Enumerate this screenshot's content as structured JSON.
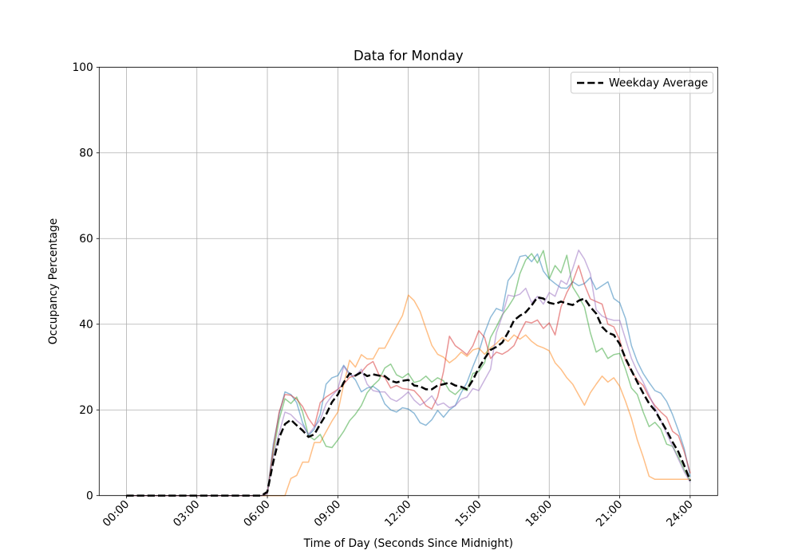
{
  "chart_data": {
    "type": "line",
    "title": "Data for Monday",
    "xlabel": "Time of Day (Seconds Since Midnight)",
    "ylabel": "Occupancy Percentage",
    "background": "#ffffff",
    "grid": true,
    "grid_color": "#b0b0b0",
    "x_tick_hours": [
      0,
      3,
      6,
      9,
      12,
      15,
      18,
      21,
      24
    ],
    "x_tick_labels": [
      "00:00",
      "03:00",
      "06:00",
      "09:00",
      "12:00",
      "15:00",
      "18:00",
      "21:00",
      "24:00"
    ],
    "y_ticks": [
      0,
      20,
      40,
      60,
      80,
      100
    ],
    "xlim_hours": [
      -1.16,
      25.17
    ],
    "ylim": [
      0,
      100
    ],
    "x_start_hours": 0,
    "x_step_hours": 0.25,
    "legend": {
      "position": "upper right",
      "entries": [
        "Weekday Average"
      ]
    },
    "series": [
      {
        "id": "day-series-1",
        "color": "#1f77b4",
        "opacity": 0.5,
        "line_width": 1.5,
        "values": [
          0,
          0,
          0,
          0,
          0,
          0,
          0,
          0,
          0,
          0,
          0,
          0,
          0,
          0,
          0,
          0,
          0,
          0,
          0,
          0,
          0,
          0,
          0,
          0,
          0.5,
          12,
          19,
          24.2,
          23.6,
          21.7,
          17,
          14,
          15.5,
          19,
          26,
          27.5,
          28,
          30.4,
          28.5,
          27,
          24.2,
          25.1,
          25.5,
          24.5,
          21.4,
          20,
          19.5,
          20.5,
          20.2,
          19.2,
          17,
          16.4,
          17.7,
          19.9,
          18.3,
          20,
          21,
          24,
          26.4,
          30.1,
          33.5,
          38,
          41.6,
          43.7,
          43.1,
          50.2,
          52,
          55.8,
          56.1,
          54.6,
          56.4,
          52.4,
          50.6,
          49.5,
          48.5,
          48.4,
          49.9,
          49,
          49.5,
          50.9,
          48.1,
          49,
          49.9,
          46,
          45,
          41.3,
          35,
          31.3,
          28.5,
          26.4,
          24.5,
          23.9,
          22,
          18.9,
          15.2,
          10.9,
          4.5
        ]
      },
      {
        "id": "day-series-2",
        "color": "#ff7f0e",
        "opacity": 0.5,
        "line_width": 1.5,
        "values": [
          0,
          0,
          0,
          0,
          0,
          0,
          0,
          0,
          0,
          0,
          0,
          0,
          0,
          0,
          0,
          0,
          0,
          0,
          0,
          0,
          0,
          0,
          0,
          0,
          0,
          0,
          0,
          0,
          4,
          4.7,
          7.8,
          7.8,
          12.4,
          12.4,
          14.9,
          17.4,
          19.5,
          26,
          31.6,
          30,
          32.9,
          31.9,
          31.9,
          34.4,
          34.4,
          37,
          39.5,
          42,
          46.8,
          45.5,
          43,
          39,
          35.1,
          33,
          32.3,
          31,
          32,
          33.5,
          32.5,
          34,
          34.4,
          33,
          34.5,
          35.5,
          36.9,
          36,
          37.5,
          36.5,
          37.5,
          36,
          35,
          34.5,
          33.8,
          31,
          29.5,
          27.5,
          26,
          23.5,
          21.1,
          24,
          26,
          27.9,
          26.5,
          27.5,
          25.5,
          22,
          18,
          13,
          9,
          4.5,
          3.8,
          3.8,
          3.8,
          3.8,
          3.8,
          3.8,
          3.8
        ]
      },
      {
        "id": "day-series-3",
        "color": "#2ca02c",
        "opacity": 0.5,
        "line_width": 1.5,
        "values": [
          0,
          0,
          0,
          0,
          0,
          0,
          0,
          0,
          0,
          0,
          0,
          0,
          0,
          0,
          0,
          0,
          0,
          0,
          0,
          0,
          0,
          0,
          0,
          0,
          0.5,
          10,
          17.7,
          22.6,
          21.5,
          23,
          19.5,
          14,
          13,
          14.3,
          11.5,
          11.2,
          13,
          15,
          17.5,
          19,
          21,
          24,
          25.7,
          27,
          29.8,
          30.7,
          28.2,
          27.5,
          28.5,
          26.4,
          26.8,
          27.9,
          26.5,
          27.5,
          26.8,
          24.5,
          23.6,
          25,
          24.5,
          28.5,
          29,
          31,
          36.9,
          39.4,
          42.2,
          44,
          46.2,
          51.8,
          55,
          56.5,
          54.3,
          57.2,
          50.6,
          53.7,
          52,
          56.1,
          48.7,
          46.5,
          44,
          38,
          33.5,
          34.4,
          32,
          32.9,
          33.2,
          29.5,
          25.1,
          23.6,
          19.5,
          16.1,
          17.1,
          15.5,
          12,
          11.5,
          9,
          6,
          3.5
        ]
      },
      {
        "id": "day-series-4",
        "color": "#d62728",
        "opacity": 0.5,
        "line_width": 1.5,
        "values": [
          0,
          0,
          0,
          0,
          0,
          0,
          0,
          0,
          0,
          0,
          0,
          0,
          0,
          0,
          0,
          0,
          0,
          0,
          0,
          0,
          0,
          0,
          0,
          0,
          0.5,
          11,
          19.5,
          23.6,
          23.4,
          22.5,
          20.8,
          18,
          16.1,
          21.7,
          23,
          23.9,
          24.8,
          26,
          27.6,
          28,
          28.8,
          30.4,
          31.3,
          28.2,
          27.6,
          25.1,
          25.7,
          25,
          24.8,
          24.5,
          23,
          21,
          20.2,
          23,
          29,
          37.2,
          35,
          34,
          32.9,
          35,
          38.5,
          36.9,
          32,
          33.5,
          33,
          33.8,
          35,
          38,
          40.6,
          40.3,
          41,
          39,
          40.3,
          37.5,
          44,
          47.4,
          49.9,
          53.7,
          49.3,
          45.9,
          45.3,
          44.7,
          40,
          39.4,
          36.3,
          31.6,
          29,
          27,
          25.7,
          23,
          21,
          19.5,
          18.3,
          15,
          14,
          10.2,
          5.3
        ]
      },
      {
        "id": "day-series-5",
        "color": "#9467bd",
        "opacity": 0.5,
        "line_width": 1.5,
        "values": [
          0,
          0,
          0,
          0,
          0,
          0,
          0,
          0,
          0,
          0,
          0,
          0,
          0,
          0,
          0,
          0,
          0,
          0,
          0,
          0,
          0,
          0,
          0,
          0,
          0.5,
          9,
          14.6,
          19.5,
          18.9,
          17.5,
          16.4,
          14.3,
          16,
          17.7,
          21.4,
          23.3,
          24.8,
          30.2,
          28.2,
          28,
          29.5,
          26,
          24.5,
          24.2,
          24.2,
          22.6,
          22,
          23,
          24.2,
          22.3,
          21.1,
          22,
          23.3,
          21.1,
          21.6,
          20.5,
          21,
          22.5,
          23,
          25,
          24.5,
          27,
          29.5,
          38,
          41.9,
          46.8,
          46.5,
          47,
          48.4,
          45,
          46.5,
          44.7,
          47.4,
          46.5,
          50.2,
          49.3,
          53,
          57.3,
          55.2,
          51.8,
          43.4,
          41.9,
          41.3,
          40.9,
          40.9,
          36.5,
          32,
          29,
          26.5,
          23.5,
          20.5,
          17.5,
          14.5,
          11.5,
          8.5,
          5.5,
          3.2
        ]
      }
    ],
    "average": {
      "id": "weekday-average",
      "label": "Weekday Average",
      "color": "#000000",
      "line_width": 2.5,
      "dash": [
        9.2,
        4
      ],
      "values": [
        0,
        0,
        0,
        0,
        0,
        0,
        0,
        0,
        0,
        0,
        0,
        0,
        0,
        0,
        0,
        0,
        0,
        0,
        0,
        0,
        0,
        0,
        0,
        0,
        0.9,
        7.8,
        13.5,
        16.7,
        17.7,
        16.4,
        15.2,
        13.7,
        14.3,
        16.7,
        18.9,
        21.8,
        23.6,
        26.4,
        28.5,
        28,
        28.8,
        27.9,
        28.3,
        28,
        27.9,
        26.8,
        26.4,
        26.8,
        27,
        25.7,
        25.5,
        24.8,
        24.8,
        25.7,
        26,
        26.4,
        25.7,
        25.4,
        24.8,
        27,
        29.8,
        32,
        34,
        34.7,
        35.7,
        38.1,
        40.9,
        42,
        42.8,
        44.4,
        46.3,
        46,
        45,
        44.7,
        45.3,
        44.8,
        44.5,
        45.5,
        46,
        44,
        42.5,
        39.4,
        38,
        37.5,
        35.4,
        32,
        29.2,
        26.5,
        23.9,
        21.5,
        19.9,
        17.5,
        15.2,
        12.5,
        10.2,
        7,
        3.5
      ]
    }
  }
}
